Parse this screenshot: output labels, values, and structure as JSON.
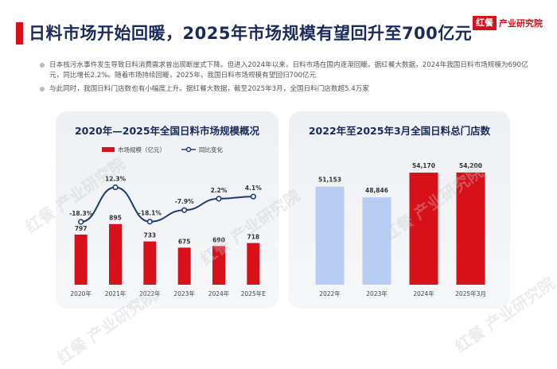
{
  "header": {
    "title": "日料市场开始回暖，2025年市场规模有望回升至700亿元",
    "brand_badge": "红餐",
    "brand_name": "产业研究院"
  },
  "bullets": [
    "日本核污水事件发生导致日料消费需求曾出现断崖式下降。但进入2024年以来，日料市场在国内逐渐回暖。据红餐大数据，2024年我国日料市场规模为690亿元，同比增长2.2%。随着市场持续回暖，2025年，我国日料市场规模有望回归700亿元",
    "与此同时，我国日料门店数也有小幅度上升。据红餐大数据，截至2025年3月，全国日料门店数超5.4万家"
  ],
  "watermark": "红餐 产业研究院",
  "chart_data": [
    {
      "type": "bar",
      "title": "2020年—2025年全国日料市场规模概况",
      "categories": [
        "2020年",
        "2021年",
        "2022年",
        "2023年",
        "2024年",
        "2025年E"
      ],
      "series": [
        {
          "name": "市场规模（亿元）",
          "type": "bar",
          "values": [
            797,
            895,
            733,
            675,
            690,
            718
          ],
          "color": "#d7101a"
        },
        {
          "name": "同比变化",
          "type": "line",
          "values": [
            -18.3,
            12.3,
            -18.1,
            -7.9,
            2.2,
            4.1
          ],
          "labels": [
            "-18.3%",
            "12.3%",
            "-18.1%",
            "-7.9%",
            "2.2%",
            "4.1%"
          ],
          "color": "#1f3b73"
        }
      ],
      "legend": "top-center",
      "grid": false
    },
    {
      "type": "bar",
      "title": "2022年至2025年3月全国日料总门店数",
      "categories": [
        "2022年",
        "2023年",
        "2024年",
        "2025年3月"
      ],
      "values": [
        51153,
        48846,
        54170,
        54200
      ],
      "labels": [
        "51,153",
        "48,846",
        "54,170",
        "54,200"
      ],
      "colors": [
        "#b7cdf2",
        "#b7cdf2",
        "#d7101a",
        "#d7101a"
      ],
      "grid": false
    }
  ]
}
